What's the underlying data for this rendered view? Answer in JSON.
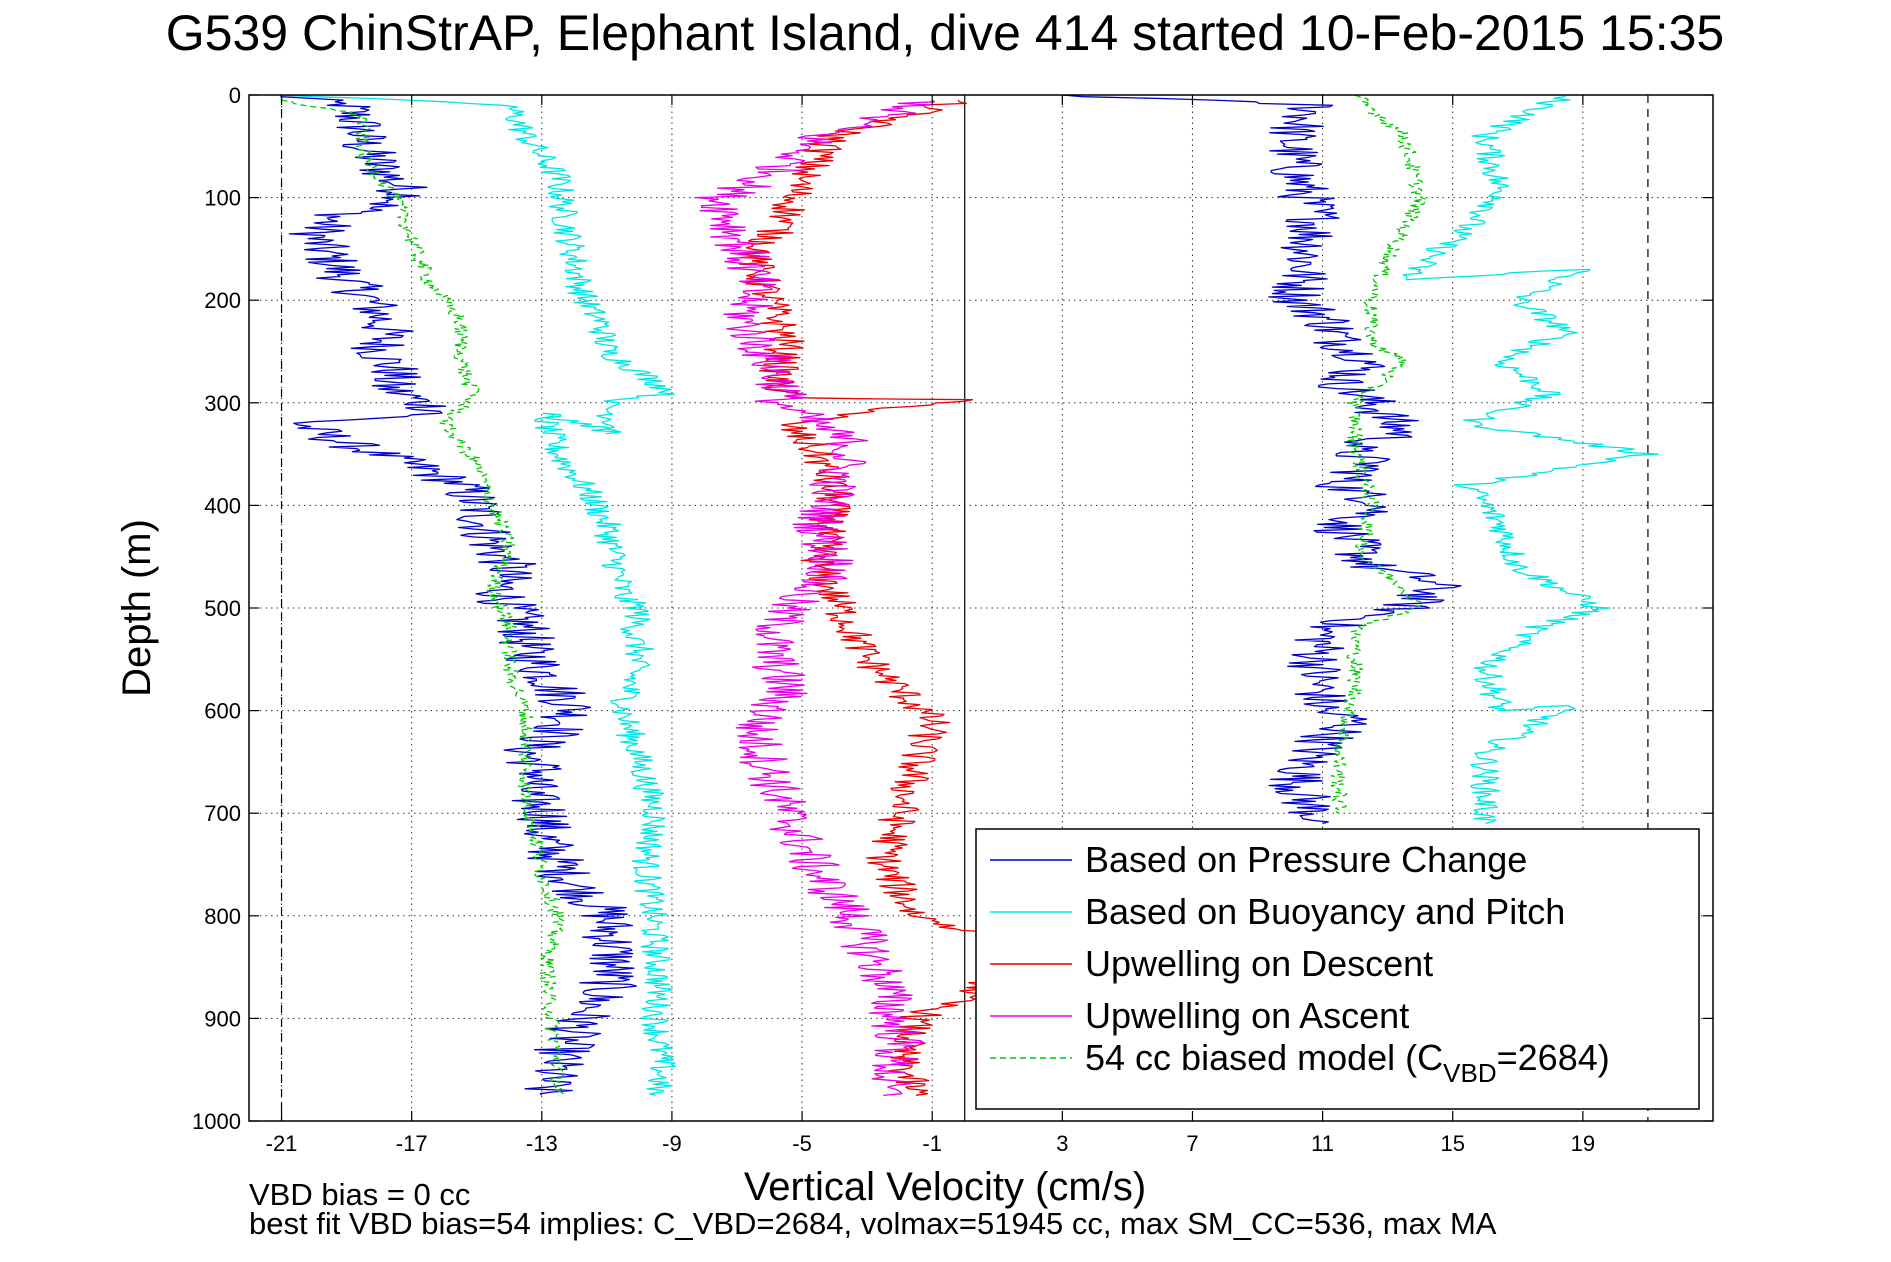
{
  "chart_data": {
    "type": "line",
    "title": "G539 ChinStrAP, Elephant Island, dive 414 started 10-Feb-2015 15:35",
    "xlabel": "Vertical Velocity (cm/s)",
    "ylabel": "Depth (m)",
    "xlim": [
      -22,
      23
    ],
    "ylim": [
      1000,
      0
    ],
    "y_inverted": true,
    "grid": true,
    "xticks": [
      -21,
      -17,
      -13,
      -9,
      -5,
      -1,
      3,
      7,
      11,
      15,
      19
    ],
    "xtick_labels": [
      "-21",
      "-17",
      "-13",
      "-9",
      "-5",
      "-1",
      "3",
      "7",
      "11",
      "15",
      "19"
    ],
    "yticks": [
      0,
      100,
      200,
      300,
      400,
      500,
      600,
      700,
      800,
      900,
      1000
    ],
    "ytick_labels": [
      "0",
      "100",
      "200",
      "300",
      "400",
      "500",
      "600",
      "700",
      "800",
      "900",
      "1000"
    ],
    "legend_position": "bottom-right",
    "vertical_lines": [
      {
        "x": 0,
        "style": "solid"
      },
      {
        "x": -21,
        "style": "dashed"
      },
      {
        "x": 21,
        "style": "dashed"
      }
    ],
    "series": [
      {
        "name": "Based on Pressure Change",
        "color": "#0000c8",
        "dash": "solid",
        "x": [
          -21,
          -19,
          -18.6,
          -18.5,
          -18,
          -17.5,
          -17,
          -19.5,
          -20,
          -19.5,
          -19,
          -18.3,
          -18,
          -17.8,
          -18,
          -17.5,
          -17.8,
          -17,
          -16,
          -20.5,
          -19,
          -17,
          -15.5,
          -15,
          -14.8,
          -14.5,
          -14,
          -14.3,
          -14,
          -13.5,
          -13.5,
          -13,
          -12.5,
          -12,
          -12.5,
          -13.5,
          -13,
          -13.5,
          -12.8,
          -13,
          -12.3,
          -11,
          -10.8,
          -11,
          -11.5,
          -12,
          -12.5,
          -13
        ],
        "depth": [
          0,
          10,
          30,
          50,
          70,
          85,
          100,
          120,
          140,
          160,
          180,
          200,
          215,
          230,
          250,
          270,
          285,
          295,
          310,
          320,
          340,
          360,
          380,
          400,
          420,
          440,
          460,
          480,
          500,
          520,
          540,
          560,
          580,
          600,
          620,
          640,
          660,
          680,
          700,
          720,
          760,
          800,
          840,
          870,
          890,
          910,
          940,
          975
        ],
        "x_ascent": [
          3,
          10.8,
          10,
          10.2,
          10.8,
          10.5,
          10.2,
          11.2,
          11.5,
          12.5,
          11.5,
          12.5,
          13.5,
          11.7,
          12.5,
          11.5,
          13,
          11.5,
          12,
          12.5,
          14,
          14.5,
          13.5,
          11,
          10.8,
          11,
          12,
          11,
          10.5,
          10.2,
          10.5,
          11
        ],
        "depth_ascent": [
          0,
          10,
          40,
          80,
          120,
          160,
          200,
          220,
          240,
          260,
          280,
          300,
          330,
          345,
          360,
          380,
          400,
          420,
          440,
          460,
          470,
          480,
          500,
          520,
          560,
          600,
          610,
          630,
          650,
          670,
          690,
          710
        ]
      },
      {
        "name": "Based on Buoyancy and Pitch",
        "color": "#00e6e6",
        "dash": "solid",
        "x": [
          -21,
          -14,
          -13.5,
          -12.5,
          -12.3,
          -12,
          -11.8,
          -11.5,
          -11.2,
          -11,
          -9,
          -11,
          -10.7,
          -13,
          -12.5,
          -11.5,
          -11,
          -10.7,
          -10.5,
          -10,
          -10.2,
          -10,
          -10.5,
          -10,
          -9.5,
          -9.8,
          -9.6,
          -9.4,
          -9.5,
          -9.3,
          -9.5
        ],
        "depth": [
          0,
          10,
          40,
          80,
          120,
          160,
          190,
          210,
          220,
          250,
          290,
          300,
          330,
          310,
          350,
          390,
          420,
          460,
          490,
          500,
          530,
          540,
          600,
          650,
          700,
          750,
          800,
          870,
          900,
          950,
          975
        ],
        "x_ascent": [
          18.5,
          16,
          16.5,
          13.5,
          19,
          17,
          18.5,
          16.5,
          18,
          15.5,
          21,
          15.5,
          16.5,
          17,
          19.5,
          17.5,
          16,
          16.5,
          18.5,
          16,
          16
        ],
        "depth_ascent": [
          0,
          40,
          100,
          180,
          170,
          200,
          230,
          260,
          290,
          320,
          350,
          380,
          420,
          460,
          500,
          520,
          560,
          600,
          595,
          640,
          710
        ]
      },
      {
        "name": "Upwelling on Descent",
        "color": "#e60000",
        "dash": "solid",
        "x": [
          -0.2,
          -4,
          -5,
          -5.5,
          -6.5,
          -6,
          -5.5,
          -5.8,
          -5.5,
          -0.2,
          -5.5,
          -4.5,
          -4,
          -4.3,
          -4.5,
          -4,
          -3.5,
          -3,
          -2,
          -1,
          -1.5,
          -2,
          -2.5,
          -1.5,
          2,
          0.5,
          -1.5,
          -2,
          -1.5
        ],
        "depth": [
          5,
          40,
          80,
          120,
          160,
          200,
          240,
          280,
          295,
          297,
          320,
          350,
          390,
          430,
          460,
          490,
          520,
          550,
          580,
          610,
          650,
          700,
          750,
          800,
          830,
          870,
          900,
          940,
          975
        ],
        "x_ascent": [],
        "depth_ascent": []
      },
      {
        "name": "Upwelling on Ascent",
        "color": "#e600e6",
        "dash": "solid",
        "x": [
          -1,
          -4.5,
          -6,
          -7.5,
          -7,
          -6.5,
          -6.8,
          -6,
          -5.5,
          -5.7,
          -3.5,
          -4,
          -4.5,
          -4,
          -5.5,
          -6,
          -5.5,
          -6.5,
          -6,
          -5.5,
          -4.5,
          -3.5,
          -2.5,
          -2,
          -2.5
        ],
        "depth": [
          5,
          40,
          80,
          100,
          140,
          180,
          220,
          260,
          290,
          300,
          340,
          380,
          420,
          460,
          500,
          540,
          580,
          620,
          660,
          700,
          760,
          800,
          860,
          920,
          975
        ],
        "x_ascent": [],
        "depth_ascent": []
      },
      {
        "name": "54 cc biased model (C_VBD=2684)",
        "color": "#00c800",
        "dash": "dashed",
        "x": [
          -21,
          -18.5,
          -18.5,
          -17.5,
          -17,
          -16.5,
          -16,
          -15.5,
          -15.5,
          -15.3,
          -15,
          -16,
          -15,
          -14.5,
          -14,
          -14.5,
          -14,
          -14,
          -13.5,
          -13.5,
          -13.5,
          -13.2,
          -13,
          -12.5,
          -12.8,
          -12.8,
          -12.5,
          -12.5
        ],
        "depth": [
          5,
          20,
          60,
          100,
          140,
          180,
          200,
          220,
          250,
          280,
          290,
          320,
          360,
          400,
          440,
          480,
          520,
          560,
          600,
          640,
          680,
          720,
          760,
          800,
          840,
          880,
          940,
          975
        ],
        "x_ascent": [
          12,
          13.5,
          14,
          13,
          12.5,
          12.5,
          13.5,
          12,
          12,
          12.5,
          12.2,
          13.5,
          14,
          12,
          12,
          11.5,
          11.5
        ],
        "depth_ascent": [
          0,
          40,
          100,
          160,
          200,
          240,
          260,
          300,
          340,
          400,
          450,
          480,
          500,
          520,
          580,
          640,
          700
        ]
      }
    ],
    "legend": [
      {
        "label": "Based on Pressure Change",
        "color": "#0000c8",
        "dash": "solid"
      },
      {
        "label": "Based on Buoyancy and Pitch",
        "color": "#00e6e6",
        "dash": "solid"
      },
      {
        "label": "Upwelling on Descent",
        "color": "#e60000",
        "dash": "solid"
      },
      {
        "label": "Upwelling on Ascent",
        "color": "#e600e6",
        "dash": "solid"
      },
      {
        "label": "54 cc biased model (C",
        "sub": "VBD",
        "label_end": "=2684)",
        "color": "#00c800",
        "dash": "dashed"
      }
    ],
    "footnotes": {
      "line1": "VBD bias = 0 cc",
      "line2": "best fit VBD bias=54 implies: C_VBD=2684, volmax=51945 cc, max SM_CC=536, max MA"
    }
  }
}
